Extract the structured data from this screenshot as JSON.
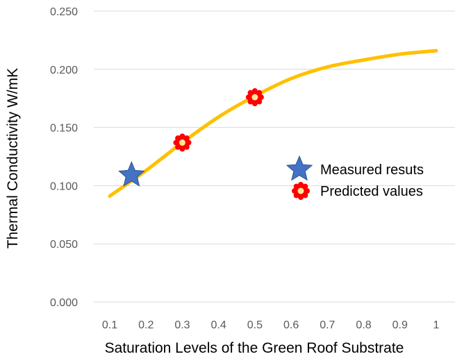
{
  "chart_data": {
    "type": "line",
    "title": "",
    "xlabel": "Saturation Levels of the Green Roof Substrate",
    "ylabel": "Thermal Conductivity W/mK",
    "x_ticks": [
      "0.1",
      "0.2",
      "0.3",
      "0.4",
      "0.5",
      "0.6",
      "0.7",
      "0.8",
      "0.9",
      "1"
    ],
    "y_ticks": [
      "0.000",
      "0.050",
      "0.100",
      "0.150",
      "0.200",
      "0.250"
    ],
    "xlim": [
      0.1,
      1.0
    ],
    "ylim": [
      0,
      0.25
    ],
    "grid": "horizontal",
    "legend_position": "right",
    "series": [
      {
        "kind": "line",
        "color": "#FFC000",
        "x": [
          0.1,
          0.2,
          0.3,
          0.4,
          0.5,
          0.6,
          0.7,
          0.8,
          0.9,
          1.0
        ],
        "y": [
          0.091,
          0.113,
          0.137,
          0.159,
          0.177,
          0.192,
          0.202,
          0.208,
          0.213,
          0.216
        ]
      },
      {
        "name": "Measured resuts",
        "kind": "scatter",
        "marker": "star",
        "color": "#4472C4",
        "x": [
          0.16
        ],
        "y": [
          0.109
        ]
      },
      {
        "name": "Predicted values",
        "kind": "scatter",
        "marker": "gear",
        "color": "#FF0000",
        "x": [
          0.3,
          0.5
        ],
        "y": [
          0.137,
          0.176
        ]
      }
    ]
  }
}
